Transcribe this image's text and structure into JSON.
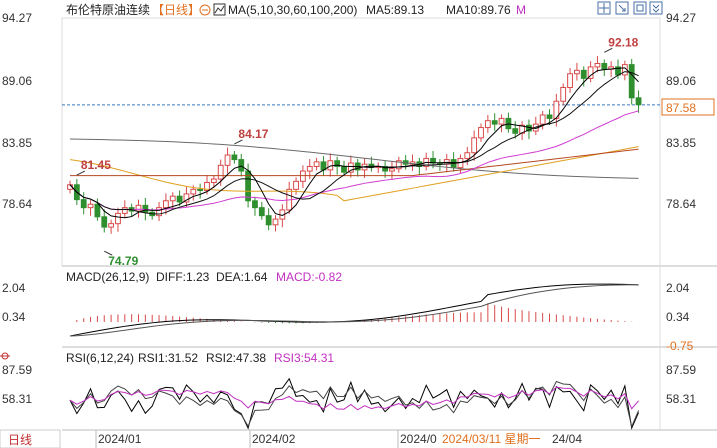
{
  "header": {
    "instrument": "布伦特原油连续",
    "period_tag": "【日线】",
    "ma_label": "MA(5,10,30,60,100,200)",
    "ma5": "MA5:89.13",
    "ma10": "MA10:89.76",
    "m_button": "M"
  },
  "colors": {
    "up": "#d94a4a",
    "down": "#2f8f2f",
    "ma5": "#000000",
    "ma10": "#111111",
    "ma30": "#d23cd2",
    "ma60": "#b5471f",
    "ma100": "#e0a020",
    "ma200": "#6a6a6a",
    "axis_text": "#333333",
    "last_price_line": "#3a78c0",
    "last_price_text": "#e07020",
    "annotation": "#c04040"
  },
  "price_panel": {
    "right_ticks": [
      "94.27",
      "89.06",
      "83.85",
      "78.64"
    ],
    "tick_values": [
      94.27,
      89.06,
      83.85,
      78.64
    ],
    "last_price_label": "87.58",
    "last_price": 87.58,
    "annotations": [
      {
        "text": "92.18",
        "value": 92.18,
        "index": 78
      },
      {
        "text": "84.17",
        "value": 84.17,
        "index": 24
      },
      {
        "text": "81.45",
        "value": 81.45,
        "index": 1
      },
      {
        "text": "74.79",
        "value": 74.79,
        "index": 5
      }
    ]
  },
  "macd_panel": {
    "label": "MACD(26,12,9)",
    "diff": "DIFF:1.23",
    "dea": "DEA:1.64",
    "macd": "MACD:-0.82",
    "right_ticks": [
      "2.04",
      "0.34",
      "-0.75"
    ],
    "tick_values": [
      2.04,
      0.34,
      -0.75
    ]
  },
  "rsi_panel": {
    "label": "RSI(6,12,24)",
    "rsi1": "RSI1:31.52",
    "rsi2": "RSI2:47.38",
    "rsi3": "RSI3:54.31",
    "right_ticks": [
      "87.59",
      "58.31"
    ],
    "tick_values": [
      87.59,
      58.31
    ]
  },
  "x_axis": {
    "labels": [
      "2024/01",
      "2024/02",
      "2024/0",
      "2024/03/11 星期一",
      "24/04"
    ],
    "period_button": "日线"
  },
  "chart_data": {
    "type": "candlestick",
    "title": "布伦特原油连续【日线】",
    "ylim": [
      73.5,
      95
    ],
    "closes": [
      80.6,
      79.3,
      78.6,
      78.9,
      77.8,
      76.9,
      77.2,
      78.1,
      78.6,
      78.3,
      78.8,
      78.2,
      77.9,
      78.6,
      79.2,
      79.6,
      79.1,
      79.8,
      80.2,
      80.1,
      80.8,
      81.1,
      82.3,
      83.2,
      82.8,
      81.8,
      79.2,
      78.6,
      77.9,
      77.1,
      77.6,
      78.4,
      80.2,
      80.9,
      81.8,
      82.2,
      82.6,
      81.9,
      82.7,
      82.2,
      81.7,
      82.5,
      81.9,
      82.4,
      82.1,
      82.2,
      81.8,
      82.0,
      82.7,
      82.4,
      82.6,
      82.2,
      82.9,
      82.5,
      82.4,
      82.8,
      82.1,
      82.9,
      83.4,
      84.7,
      85.6,
      86.2,
      85.9,
      86.4,
      85.5,
      85.1,
      85.8,
      85.3,
      85.9,
      86.7,
      86.4,
      87.9,
      89.1,
      90.3,
      90.6,
      89.9,
      90.9,
      91.2,
      90.7,
      90.9,
      90.2,
      91.1,
      88.2,
      87.6
    ]
  }
}
